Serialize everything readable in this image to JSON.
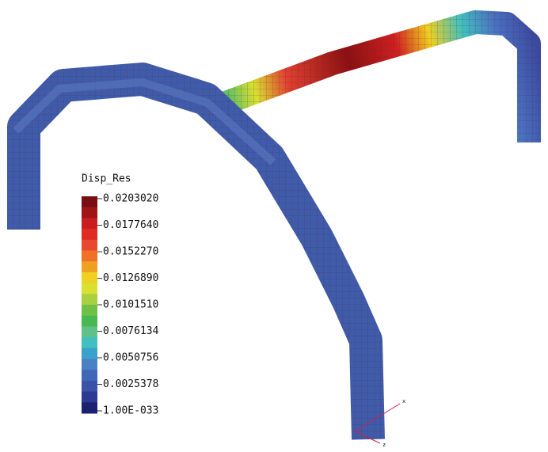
{
  "legend": {
    "title": "Disp_Res",
    "labels": [
      "0.0203020",
      "0.0177640",
      "0.0152270",
      "0.0126890",
      "0.0101510",
      "0.0076134",
      "0.0050756",
      "0.0025378",
      "1.00E-033"
    ],
    "colors": [
      "#7a0d12",
      "#a01418",
      "#c81c1e",
      "#e02a24",
      "#e84830",
      "#f07028",
      "#f0a020",
      "#f0d020",
      "#d8e030",
      "#a8d040",
      "#70c048",
      "#48b850",
      "#60c088",
      "#40c0c0",
      "#3aa0cc",
      "#4a80c4",
      "#4068b8",
      "#3a52a8",
      "#2c3a94",
      "#1c2070"
    ]
  },
  "axes": {
    "x": "x",
    "z": "z"
  }
}
